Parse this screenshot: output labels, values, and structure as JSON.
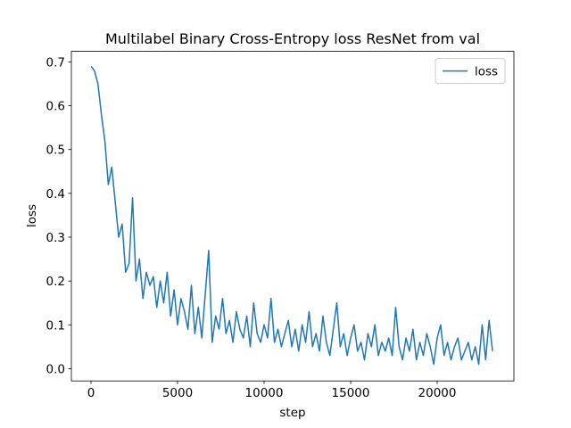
{
  "chart_data": {
    "type": "line",
    "title": "Multilabel Binary Cross-Entropy loss ResNet from val",
    "x_label": "step",
    "y_label": "loss",
    "x": [
      0,
      200,
      400,
      600,
      800,
      1000,
      1200,
      1400,
      1600,
      1800,
      2000,
      2200,
      2400,
      2600,
      2800,
      3000,
      3200,
      3400,
      3600,
      3800,
      4000,
      4200,
      4400,
      4600,
      4800,
      5000,
      5200,
      5400,
      5600,
      5800,
      6000,
      6200,
      6400,
      6600,
      6800,
      7000,
      7200,
      7400,
      7600,
      7800,
      8000,
      8200,
      8400,
      8600,
      8800,
      9000,
      9200,
      9400,
      9600,
      9800,
      10000,
      10200,
      10400,
      10600,
      10800,
      11000,
      11200,
      11400,
      11600,
      11800,
      12000,
      12200,
      12400,
      12600,
      12800,
      13000,
      13200,
      13400,
      13600,
      13800,
      14000,
      14200,
      14400,
      14600,
      14800,
      15000,
      15200,
      15400,
      15600,
      15800,
      16000,
      16200,
      16400,
      16600,
      16800,
      17000,
      17200,
      17400,
      17600,
      17800,
      18000,
      18200,
      18400,
      18600,
      18800,
      19000,
      19200,
      19400,
      19600,
      19800,
      20000,
      20200,
      20400,
      20600,
      20800,
      21000,
      21200,
      21400,
      21600,
      21800,
      22000,
      22200,
      22400,
      22600,
      22800,
      23000,
      23200
    ],
    "series": [
      {
        "name": "loss",
        "color": "#1f77b4",
        "values": [
          0.69,
          0.68,
          0.65,
          0.58,
          0.52,
          0.42,
          0.46,
          0.38,
          0.3,
          0.33,
          0.22,
          0.24,
          0.39,
          0.2,
          0.25,
          0.16,
          0.22,
          0.19,
          0.21,
          0.14,
          0.2,
          0.15,
          0.22,
          0.12,
          0.18,
          0.1,
          0.16,
          0.13,
          0.09,
          0.19,
          0.08,
          0.14,
          0.07,
          0.17,
          0.27,
          0.06,
          0.12,
          0.09,
          0.16,
          0.08,
          0.11,
          0.06,
          0.13,
          0.09,
          0.07,
          0.12,
          0.05,
          0.15,
          0.08,
          0.06,
          0.1,
          0.07,
          0.16,
          0.06,
          0.09,
          0.05,
          0.08,
          0.11,
          0.05,
          0.09,
          0.04,
          0.1,
          0.06,
          0.13,
          0.05,
          0.08,
          0.04,
          0.12,
          0.06,
          0.03,
          0.09,
          0.15,
          0.05,
          0.08,
          0.03,
          0.07,
          0.1,
          0.04,
          0.06,
          0.02,
          0.08,
          0.05,
          0.1,
          0.03,
          0.06,
          0.04,
          0.07,
          0.03,
          0.14,
          0.05,
          0.02,
          0.07,
          0.04,
          0.09,
          0.02,
          0.06,
          0.03,
          0.08,
          0.05,
          0.01,
          0.07,
          0.1,
          0.03,
          0.06,
          0.02,
          0.05,
          0.07,
          0.02,
          0.04,
          0.06,
          0.02,
          0.05,
          0.01,
          0.1,
          0.02,
          0.11,
          0.04
        ]
      }
    ],
    "xlim": [
      -1134,
      24433
    ],
    "ylim": [
      -0.028,
      0.724
    ],
    "xticks": [
      0,
      5000,
      10000,
      15000,
      20000
    ],
    "yticks": [
      {
        "value": 0,
        "label": "0.0"
      },
      0.1,
      0.2,
      0.3,
      0.4,
      0.5,
      0.6,
      0.7
    ],
    "legend": "upper right"
  }
}
